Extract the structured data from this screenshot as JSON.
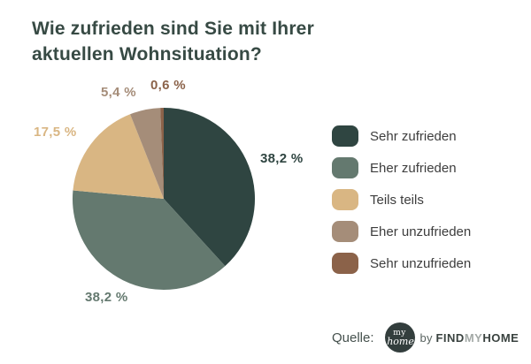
{
  "title": {
    "line1": "Wie zufrieden sind Sie mit Ihrer",
    "line2": "aktuellen Wohnsituation?",
    "color": "#374a44"
  },
  "chart_data": {
    "type": "pie",
    "title": "Wie zufrieden sind Sie mit Ihrer aktuellen Wohnsituation?",
    "unit": "%",
    "direction": "clockwise",
    "start_angle_deg": -90,
    "legend_position": "right",
    "slices": [
      {
        "label": "Sehr zufrieden",
        "value": 38.2,
        "display": "38,2 %",
        "color": "#2f4541"
      },
      {
        "label": "Eher zufrieden",
        "value": 38.2,
        "display": "38,2 %",
        "color": "#64796f"
      },
      {
        "label": "Teils teils",
        "value": 17.5,
        "display": "17,5 %",
        "color": "#d9b683"
      },
      {
        "label": "Eher unzufrieden",
        "value": 5.4,
        "display": "5,4 %",
        "color": "#a58d79"
      },
      {
        "label": "Sehr unzufrieden",
        "value": 0.6,
        "display": "0,6 %",
        "color": "#8b6249"
      }
    ]
  },
  "source": {
    "label": "Quelle:",
    "logo": {
      "line1": "my",
      "line2": "home",
      "circle_color": "#333e3d"
    },
    "byline": {
      "by": "by",
      "brand_find": "FIND",
      "brand_my": "MY",
      "brand_home": "HOME"
    }
  }
}
